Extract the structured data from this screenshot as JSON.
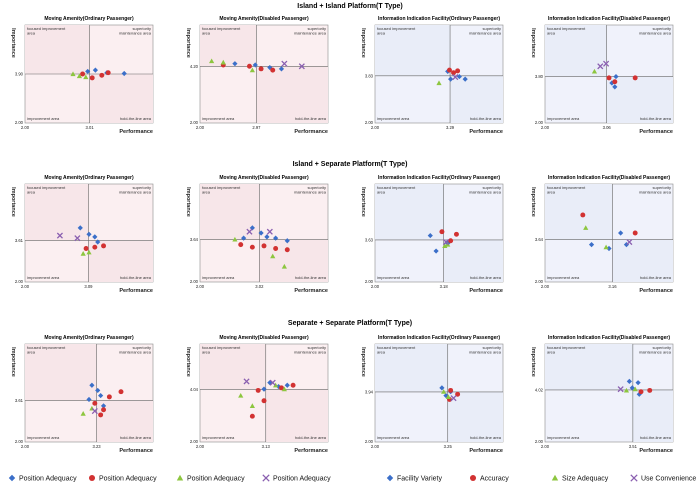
{
  "sections": [
    {
      "title": "Island + Island Platform(T Type)"
    },
    {
      "title": "Island + Separate Platform(T Type)"
    },
    {
      "title": "Separate + Separate Platform(T Type)"
    }
  ],
  "quadrant_labels": {
    "focused": "focused improvement area",
    "superiority": "superiority maintenance area",
    "improvement": "improvement area",
    "hold": "hold-the-line area"
  },
  "axis_labels": {
    "x": "Performance",
    "y": "Importance"
  },
  "legend": [
    {
      "label": "Position Adequacy",
      "marker": "diamond",
      "color": "#3b6fc9"
    },
    {
      "label": "Position Adequacy",
      "marker": "circle",
      "color": "#d23232"
    },
    {
      "label": "Position Adequacy",
      "marker": "triangle",
      "color": "#8dc63f"
    },
    {
      "label": "Position Adequacy",
      "marker": "cross",
      "color": "#8a5fb0"
    },
    {
      "label": "Facility Variety",
      "marker": "diamond",
      "color": "#3b6fc9"
    },
    {
      "label": "Accuracy",
      "marker": "circle",
      "color": "#d23232"
    },
    {
      "label": "Size Adequacy",
      "marker": "triangle",
      "color": "#8dc63f"
    },
    {
      "label": "Use Convenience",
      "marker": "cross",
      "color": "#8a5fb0"
    }
  ],
  "colors": {
    "moving_bg": "#fbeff1",
    "info_bg": "#f0f2fb",
    "red_tint": "#f7e6e9",
    "blue_tint": "#e9edf8",
    "diamond": "#3b6fc9",
    "circle": "#d23232",
    "triangle": "#8dc63f",
    "cross": "#8a5fb0"
  },
  "chart_data": [
    {
      "type": "scatter",
      "title": "Moving Amenity(Ordinary Passenger)",
      "xlabel": "Performance",
      "ylabel": "Importance",
      "x_ticks": [
        "2.00",
        "3.01"
      ],
      "y_ticks": [
        "2.00",
        "3.90"
      ],
      "xlim": [
        2.0,
        4.0
      ],
      "ylim": [
        2.0,
        5.8
      ],
      "x_mean": 3.01,
      "y_mean": 3.9,
      "tint": "red",
      "points": [
        {
          "m": "diamond",
          "x": 2.98,
          "y": 4.0
        },
        {
          "m": "diamond",
          "x": 3.1,
          "y": 4.05
        },
        {
          "m": "diamond",
          "x": 3.28,
          "y": 3.95
        },
        {
          "m": "diamond",
          "x": 3.55,
          "y": 3.92
        },
        {
          "m": "circle",
          "x": 2.9,
          "y": 3.9
        },
        {
          "m": "circle",
          "x": 3.05,
          "y": 3.75
        },
        {
          "m": "circle",
          "x": 3.2,
          "y": 3.85
        },
        {
          "m": "circle",
          "x": 3.3,
          "y": 3.95
        },
        {
          "m": "triangle",
          "x": 2.75,
          "y": 3.9
        },
        {
          "m": "triangle",
          "x": 2.85,
          "y": 3.82
        },
        {
          "m": "triangle",
          "x": 2.95,
          "y": 3.78
        }
      ]
    },
    {
      "type": "scatter",
      "title": "Moving Amenity(Disabled Passenger)",
      "xlabel": "Performance",
      "ylabel": "Importance",
      "x_ticks": [
        "2.00",
        "2.97"
      ],
      "y_ticks": [
        "2.00",
        "4.20"
      ],
      "xlim": [
        2.0,
        4.2
      ],
      "ylim": [
        2.0,
        5.8
      ],
      "x_mean": 2.97,
      "y_mean": 4.2,
      "tint": "red",
      "points": [
        {
          "m": "diamond",
          "x": 2.6,
          "y": 4.3
        },
        {
          "m": "diamond",
          "x": 2.95,
          "y": 4.25
        },
        {
          "m": "diamond",
          "x": 3.2,
          "y": 4.15
        },
        {
          "m": "diamond",
          "x": 3.4,
          "y": 4.1
        },
        {
          "m": "circle",
          "x": 2.4,
          "y": 4.25
        },
        {
          "m": "circle",
          "x": 2.85,
          "y": 4.2
        },
        {
          "m": "circle",
          "x": 3.05,
          "y": 4.1
        },
        {
          "m": "circle",
          "x": 3.25,
          "y": 4.05
        },
        {
          "m": "triangle",
          "x": 2.2,
          "y": 4.4
        },
        {
          "m": "triangle",
          "x": 2.4,
          "y": 4.35
        },
        {
          "m": "triangle",
          "x": 2.9,
          "y": 4.05
        },
        {
          "m": "cross",
          "x": 3.45,
          "y": 4.3
        },
        {
          "m": "cross",
          "x": 3.75,
          "y": 4.2
        }
      ]
    },
    {
      "type": "scatter",
      "title": "Information Indication Facility(Ordinary Passenger)",
      "xlabel": "Performance",
      "ylabel": "Importance",
      "x_ticks": [
        "2.00",
        "3.29"
      ],
      "y_ticks": [
        "2.00",
        "3.83"
      ],
      "xlim": [
        2.0,
        4.2
      ],
      "ylim": [
        2.0,
        5.8
      ],
      "x_mean": 3.29,
      "y_mean": 3.83,
      "tint": "blue",
      "points": [
        {
          "m": "diamond",
          "x": 3.25,
          "y": 4.0
        },
        {
          "m": "diamond",
          "x": 3.3,
          "y": 3.7
        },
        {
          "m": "diamond",
          "x": 3.45,
          "y": 3.8
        },
        {
          "m": "diamond",
          "x": 3.55,
          "y": 3.7
        },
        {
          "m": "circle",
          "x": 3.28,
          "y": 4.05
        },
        {
          "m": "circle",
          "x": 3.35,
          "y": 3.95
        },
        {
          "m": "circle",
          "x": 3.42,
          "y": 4.02
        },
        {
          "m": "triangle",
          "x": 3.1,
          "y": 3.55
        },
        {
          "m": "cross",
          "x": 3.38,
          "y": 3.78
        }
      ]
    },
    {
      "type": "scatter",
      "title": "Information Indication Facility(Disabled Passenger)",
      "xlabel": "Performance",
      "ylabel": "Importance",
      "x_ticks": [
        "2.00",
        "3.06"
      ],
      "y_ticks": [
        "2.00",
        "3.80"
      ],
      "xlim": [
        2.0,
        4.2
      ],
      "ylim": [
        2.0,
        5.8
      ],
      "x_mean": 3.06,
      "y_mean": 3.8,
      "tint": "blue",
      "points": [
        {
          "m": "diamond",
          "x": 3.15,
          "y": 3.55
        },
        {
          "m": "diamond",
          "x": 3.2,
          "y": 3.4
        },
        {
          "m": "diamond",
          "x": 3.22,
          "y": 3.8
        },
        {
          "m": "circle",
          "x": 3.1,
          "y": 3.75
        },
        {
          "m": "circle",
          "x": 3.2,
          "y": 3.6
        },
        {
          "m": "circle",
          "x": 3.55,
          "y": 3.75
        },
        {
          "m": "triangle",
          "x": 2.85,
          "y": 4.0
        },
        {
          "m": "cross",
          "x": 2.95,
          "y": 4.2
        },
        {
          "m": "cross",
          "x": 3.05,
          "y": 4.3
        }
      ]
    },
    {
      "type": "scatter",
      "title": "Moving Amenity(Ordinary Passenger)",
      "xlabel": "Performance",
      "ylabel": "Importance",
      "x_ticks": [
        "2.00",
        "3.09"
      ],
      "y_ticks": [
        "2.00",
        "3.61"
      ],
      "xlim": [
        2.0,
        4.2
      ],
      "ylim": [
        2.0,
        5.8
      ],
      "x_mean": 3.09,
      "y_mean": 3.61,
      "tint": "red",
      "points": [
        {
          "m": "diamond",
          "x": 2.95,
          "y": 4.1
        },
        {
          "m": "diamond",
          "x": 3.1,
          "y": 3.85
        },
        {
          "m": "diamond",
          "x": 3.2,
          "y": 3.75
        },
        {
          "m": "diamond",
          "x": 3.25,
          "y": 3.55
        },
        {
          "m": "circle",
          "x": 3.05,
          "y": 3.3
        },
        {
          "m": "circle",
          "x": 3.2,
          "y": 3.35
        },
        {
          "m": "circle",
          "x": 3.35,
          "y": 3.4
        },
        {
          "m": "triangle",
          "x": 3.0,
          "y": 3.1
        },
        {
          "m": "triangle",
          "x": 3.1,
          "y": 3.15
        },
        {
          "m": "cross",
          "x": 2.6,
          "y": 3.8
        },
        {
          "m": "cross",
          "x": 2.9,
          "y": 3.7
        }
      ]
    },
    {
      "type": "scatter",
      "title": "Moving Amenity(Disabled Passenger)",
      "xlabel": "Performance",
      "ylabel": "Importance",
      "x_ticks": [
        "2.00",
        "3.02"
      ],
      "y_ticks": [
        "2.00",
        "3.64"
      ],
      "xlim": [
        2.0,
        4.2
      ],
      "ylim": [
        2.0,
        5.8
      ],
      "x_mean": 3.02,
      "y_mean": 3.64,
      "tint": "red",
      "points": [
        {
          "m": "diamond",
          "x": 2.9,
          "y": 4.1
        },
        {
          "m": "diamond",
          "x": 3.05,
          "y": 3.9
        },
        {
          "m": "diamond",
          "x": 3.15,
          "y": 3.75
        },
        {
          "m": "diamond",
          "x": 3.3,
          "y": 3.7
        },
        {
          "m": "diamond",
          "x": 3.5,
          "y": 3.6
        },
        {
          "m": "diamond",
          "x": 2.75,
          "y": 3.7
        },
        {
          "m": "circle",
          "x": 2.7,
          "y": 3.45
        },
        {
          "m": "circle",
          "x": 2.9,
          "y": 3.35
        },
        {
          "m": "circle",
          "x": 3.1,
          "y": 3.4
        },
        {
          "m": "circle",
          "x": 3.3,
          "y": 3.3
        },
        {
          "m": "circle",
          "x": 3.5,
          "y": 3.25
        },
        {
          "m": "triangle",
          "x": 2.6,
          "y": 3.65
        },
        {
          "m": "triangle",
          "x": 3.25,
          "y": 3.0
        },
        {
          "m": "triangle",
          "x": 3.45,
          "y": 2.6
        },
        {
          "m": "cross",
          "x": 2.85,
          "y": 3.95
        },
        {
          "m": "cross",
          "x": 3.2,
          "y": 3.95
        }
      ]
    },
    {
      "type": "scatter",
      "title": "Information Indication Facility(Ordinary Passenger)",
      "xlabel": "Performance",
      "ylabel": "Importance",
      "x_ticks": [
        "2.00",
        "3.18"
      ],
      "y_ticks": [
        "2.00",
        "3.63"
      ],
      "xlim": [
        2.0,
        4.2
      ],
      "ylim": [
        2.0,
        5.8
      ],
      "x_mean": 3.18,
      "y_mean": 3.63,
      "tint": "blue",
      "points": [
        {
          "m": "diamond",
          "x": 2.95,
          "y": 3.8
        },
        {
          "m": "diamond",
          "x": 3.05,
          "y": 3.2
        },
        {
          "m": "diamond",
          "x": 3.25,
          "y": 3.5
        },
        {
          "m": "circle",
          "x": 3.15,
          "y": 3.95
        },
        {
          "m": "circle",
          "x": 3.4,
          "y": 3.85
        },
        {
          "m": "circle",
          "x": 3.3,
          "y": 3.6
        },
        {
          "m": "triangle",
          "x": 3.2,
          "y": 3.4
        },
        {
          "m": "triangle",
          "x": 3.25,
          "y": 3.45
        },
        {
          "m": "cross",
          "x": 3.22,
          "y": 3.55
        }
      ]
    },
    {
      "type": "scatter",
      "title": "Information Indication Facility(Disabled Passenger)",
      "xlabel": "Performance",
      "ylabel": "Importance",
      "x_ticks": [
        "2.00",
        "3.16"
      ],
      "y_ticks": [
        "2.00",
        "3.64"
      ],
      "xlim": [
        2.0,
        4.2
      ],
      "ylim": [
        2.0,
        5.8
      ],
      "x_mean": 3.16,
      "y_mean": 3.64,
      "tint": "blue",
      "points": [
        {
          "m": "diamond",
          "x": 2.8,
          "y": 3.45
        },
        {
          "m": "diamond",
          "x": 3.1,
          "y": 3.3
        },
        {
          "m": "diamond",
          "x": 3.3,
          "y": 3.9
        },
        {
          "m": "diamond",
          "x": 3.4,
          "y": 3.45
        },
        {
          "m": "circle",
          "x": 2.65,
          "y": 4.6
        },
        {
          "m": "circle",
          "x": 3.55,
          "y": 3.9
        },
        {
          "m": "triangle",
          "x": 2.7,
          "y": 4.1
        },
        {
          "m": "triangle",
          "x": 3.05,
          "y": 3.35
        },
        {
          "m": "cross",
          "x": 3.45,
          "y": 3.55
        }
      ]
    },
    {
      "type": "scatter",
      "title": "Moving Amenity(Ordinary Passenger)",
      "xlabel": "Performance",
      "ylabel": "Importance",
      "x_ticks": [
        "2.00",
        "3.23"
      ],
      "y_ticks": [
        "2.00",
        "3.61"
      ],
      "xlim": [
        2.0,
        4.2
      ],
      "ylim": [
        2.0,
        5.8
      ],
      "x_mean": 3.23,
      "y_mean": 3.61,
      "tint": "red",
      "points": [
        {
          "m": "diamond",
          "x": 3.15,
          "y": 4.2
        },
        {
          "m": "diamond",
          "x": 3.25,
          "y": 4.0
        },
        {
          "m": "diamond",
          "x": 3.3,
          "y": 3.8
        },
        {
          "m": "diamond",
          "x": 3.1,
          "y": 3.65
        },
        {
          "m": "diamond",
          "x": 3.35,
          "y": 3.4
        },
        {
          "m": "circle",
          "x": 3.2,
          "y": 3.5
        },
        {
          "m": "circle",
          "x": 3.35,
          "y": 3.25
        },
        {
          "m": "circle",
          "x": 3.3,
          "y": 3.05
        },
        {
          "m": "circle",
          "x": 3.45,
          "y": 3.75
        },
        {
          "m": "circle",
          "x": 3.65,
          "y": 3.95
        },
        {
          "m": "triangle",
          "x": 3.0,
          "y": 3.1
        },
        {
          "m": "triangle",
          "x": 3.15,
          "y": 3.3
        },
        {
          "m": "cross",
          "x": 3.2,
          "y": 3.2
        }
      ]
    },
    {
      "type": "scatter",
      "title": "Moving Amenity(Disabled Passenger)",
      "xlabel": "Performance",
      "ylabel": "Importance",
      "x_ticks": [
        "2.00",
        "3.13"
      ],
      "y_ticks": [
        "2.00",
        "4.04"
      ],
      "xlim": [
        2.0,
        4.2
      ],
      "ylim": [
        2.0,
        5.8
      ],
      "x_mean": 3.13,
      "y_mean": 4.04,
      "tint": "red",
      "points": [
        {
          "m": "diamond",
          "x": 3.2,
          "y": 4.3
        },
        {
          "m": "diamond",
          "x": 3.35,
          "y": 4.15
        },
        {
          "m": "diamond",
          "x": 3.5,
          "y": 4.2
        },
        {
          "m": "diamond",
          "x": 3.1,
          "y": 4.05
        },
        {
          "m": "circle",
          "x": 3.0,
          "y": 4.0
        },
        {
          "m": "circle",
          "x": 3.1,
          "y": 3.6
        },
        {
          "m": "circle",
          "x": 2.9,
          "y": 3.0
        },
        {
          "m": "circle",
          "x": 3.4,
          "y": 4.1
        },
        {
          "m": "circle",
          "x": 3.6,
          "y": 4.2
        },
        {
          "m": "triangle",
          "x": 2.7,
          "y": 3.8
        },
        {
          "m": "triangle",
          "x": 2.9,
          "y": 3.4
        },
        {
          "m": "triangle",
          "x": 3.3,
          "y": 4.2
        },
        {
          "m": "triangle",
          "x": 3.45,
          "y": 4.05
        },
        {
          "m": "cross",
          "x": 2.8,
          "y": 4.35
        },
        {
          "m": "cross",
          "x": 3.25,
          "y": 4.3
        }
      ]
    },
    {
      "type": "scatter",
      "title": "Information Indication Facility(Ordinary Passenger)",
      "xlabel": "Performance",
      "ylabel": "Importance",
      "x_ticks": [
        "2.00",
        "3.25"
      ],
      "y_ticks": [
        "2.00",
        "3.94"
      ],
      "xlim": [
        2.0,
        4.2
      ],
      "ylim": [
        2.0,
        5.8
      ],
      "x_mean": 3.25,
      "y_mean": 3.94,
      "tint": "blue",
      "points": [
        {
          "m": "diamond",
          "x": 3.15,
          "y": 4.1
        },
        {
          "m": "diamond",
          "x": 3.3,
          "y": 3.95
        },
        {
          "m": "diamond",
          "x": 3.22,
          "y": 3.8
        },
        {
          "m": "circle",
          "x": 3.3,
          "y": 4.0
        },
        {
          "m": "circle",
          "x": 3.42,
          "y": 3.85
        },
        {
          "m": "circle",
          "x": 3.28,
          "y": 3.65
        },
        {
          "m": "triangle",
          "x": 3.18,
          "y": 3.95
        },
        {
          "m": "triangle",
          "x": 3.26,
          "y": 3.75
        },
        {
          "m": "cross",
          "x": 3.35,
          "y": 3.7
        }
      ]
    },
    {
      "type": "scatter",
      "title": "Information Indication Facility(Disabled Passenger)",
      "xlabel": "Performance",
      "ylabel": "Importance",
      "x_ticks": [
        "2.00",
        "3.51"
      ],
      "y_ticks": [
        "2.00",
        "4.02"
      ],
      "xlim": [
        2.0,
        4.2
      ],
      "ylim": [
        2.0,
        5.8
      ],
      "x_mean": 3.51,
      "y_mean": 4.02,
      "tint": "blue",
      "points": [
        {
          "m": "diamond",
          "x": 3.45,
          "y": 4.35
        },
        {
          "m": "diamond",
          "x": 3.6,
          "y": 4.3
        },
        {
          "m": "diamond",
          "x": 3.5,
          "y": 4.1
        },
        {
          "m": "diamond",
          "x": 3.62,
          "y": 3.85
        },
        {
          "m": "circle",
          "x": 3.8,
          "y": 4.0
        },
        {
          "m": "circle",
          "x": 3.65,
          "y": 3.95
        },
        {
          "m": "triangle",
          "x": 3.4,
          "y": 4.0
        },
        {
          "m": "triangle",
          "x": 3.55,
          "y": 4.05
        },
        {
          "m": "cross",
          "x": 3.3,
          "y": 4.05
        }
      ]
    }
  ]
}
